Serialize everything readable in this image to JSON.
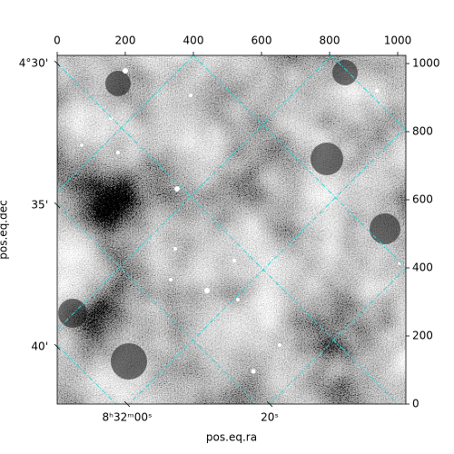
{
  "chart_data": {
    "type": "image",
    "xlabel": "pos.eq.ra",
    "ylabel": "pos.eq.dec",
    "xlim": [
      0,
      1024
    ],
    "ylim": [
      0,
      1024
    ],
    "xticks": [
      0,
      200,
      400,
      600,
      800,
      1000
    ],
    "yticks": [
      0,
      200,
      400,
      600,
      800,
      1000
    ],
    "ra_tick_labels": [
      "8ʰ32ᵐ00ˢ",
      "20ˢ"
    ],
    "dec_tick_labels": [
      "4°30'",
      "35'",
      "40'"
    ],
    "grid_color": "#3cd2d2"
  }
}
